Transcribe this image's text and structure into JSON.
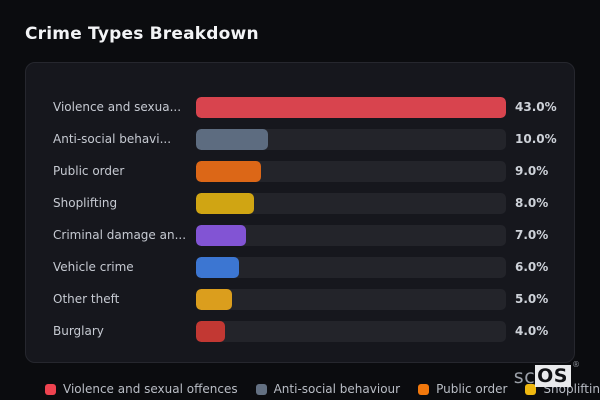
{
  "header": {
    "title": "Crime Types Breakdown"
  },
  "chart_data": {
    "type": "bar",
    "orientation": "horizontal",
    "title": "Crime Types Breakdown",
    "xlabel": "",
    "ylabel": "",
    "value_unit": "%",
    "max_value": 43,
    "grid": false,
    "legend_position": "bottom",
    "rows": [
      {
        "label": "Violence and sexua...",
        "value": 43.0,
        "display_value": "43.0%",
        "color": "#d8444e"
      },
      {
        "label": "Anti-social behavi...",
        "value": 10.0,
        "display_value": "10.0%",
        "color": "#5d6c80"
      },
      {
        "label": "Public order",
        "value": 9.0,
        "display_value": "9.0%",
        "color": "#dc6717"
      },
      {
        "label": "Shoplifting",
        "value": 8.0,
        "display_value": "8.0%",
        "color": "#d0a513"
      },
      {
        "label": "Criminal damage an...",
        "value": 7.0,
        "display_value": "7.0%",
        "color": "#8254d4"
      },
      {
        "label": "Vehicle crime",
        "value": 6.0,
        "display_value": "6.0%",
        "color": "#3c76d2"
      },
      {
        "label": "Other theft",
        "value": 5.0,
        "display_value": "5.0%",
        "color": "#db9e1d"
      },
      {
        "label": "Burglary",
        "value": 4.0,
        "display_value": "4.0%",
        "color": "#c23833"
      }
    ],
    "legend": [
      {
        "label": "Violence and sexual offences",
        "color": "#ef4350"
      },
      {
        "label": "Anti-social behaviour",
        "color": "#637082"
      },
      {
        "label": "Public order",
        "color": "#f2780c"
      },
      {
        "label": "Shoplifting",
        "color": "#efb810"
      }
    ]
  },
  "watermark": {
    "prefix": "sc",
    "suffix": "OS",
    "reg": "®"
  },
  "colors": {
    "page_background": "#0b0c0f",
    "panel_background": "#16171d",
    "panel_border": "#26272e",
    "bar_track": "#23242a",
    "label_text": "#c6cad2",
    "value_text": "#ced2d9",
    "title_text": "#f3f4f6",
    "legend_text": "#b9bdc5"
  }
}
